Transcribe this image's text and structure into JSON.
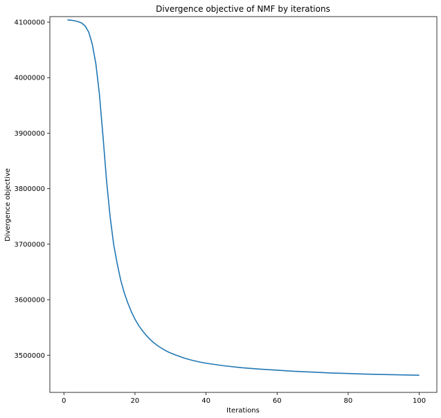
{
  "chart_data": {
    "type": "line",
    "title": "Divergence objective of NMF by iterations",
    "xlabel": "Iterations",
    "ylabel": "Divergence objective",
    "xlim": [
      -3.95,
      104.95
    ],
    "ylim": [
      3433000,
      4110000
    ],
    "xticks": [
      0,
      20,
      40,
      60,
      80,
      100
    ],
    "yticks": [
      3500000,
      3600000,
      3700000,
      3800000,
      3900000,
      4000000,
      4100000
    ],
    "grid": false,
    "series_color": "#1f77b4",
    "series": [
      {
        "x": [
          1,
          2,
          3,
          4,
          5,
          6,
          7,
          8,
          9,
          10,
          11,
          12,
          13,
          14,
          15,
          16,
          17,
          18,
          19,
          20,
          21,
          22,
          23,
          24,
          25,
          26,
          27,
          28,
          29,
          30,
          32,
          34,
          36,
          38,
          40,
          45,
          50,
          55,
          60,
          65,
          70,
          75,
          80,
          85,
          90,
          95,
          100
        ],
        "y": [
          4104000,
          4103500,
          4102500,
          4101000,
          4098500,
          4093000,
          4082000,
          4060000,
          4025000,
          3970000,
          3895000,
          3815000,
          3750000,
          3700000,
          3665000,
          3635000,
          3612000,
          3594000,
          3578000,
          3565000,
          3554000,
          3545000,
          3537000,
          3530000,
          3524000,
          3519000,
          3514500,
          3510500,
          3507000,
          3504000,
          3499000,
          3494500,
          3491000,
          3488000,
          3485500,
          3481000,
          3477500,
          3475000,
          3473000,
          3471000,
          3469500,
          3468000,
          3467000,
          3466000,
          3465200,
          3464500,
          3464000
        ]
      }
    ]
  }
}
